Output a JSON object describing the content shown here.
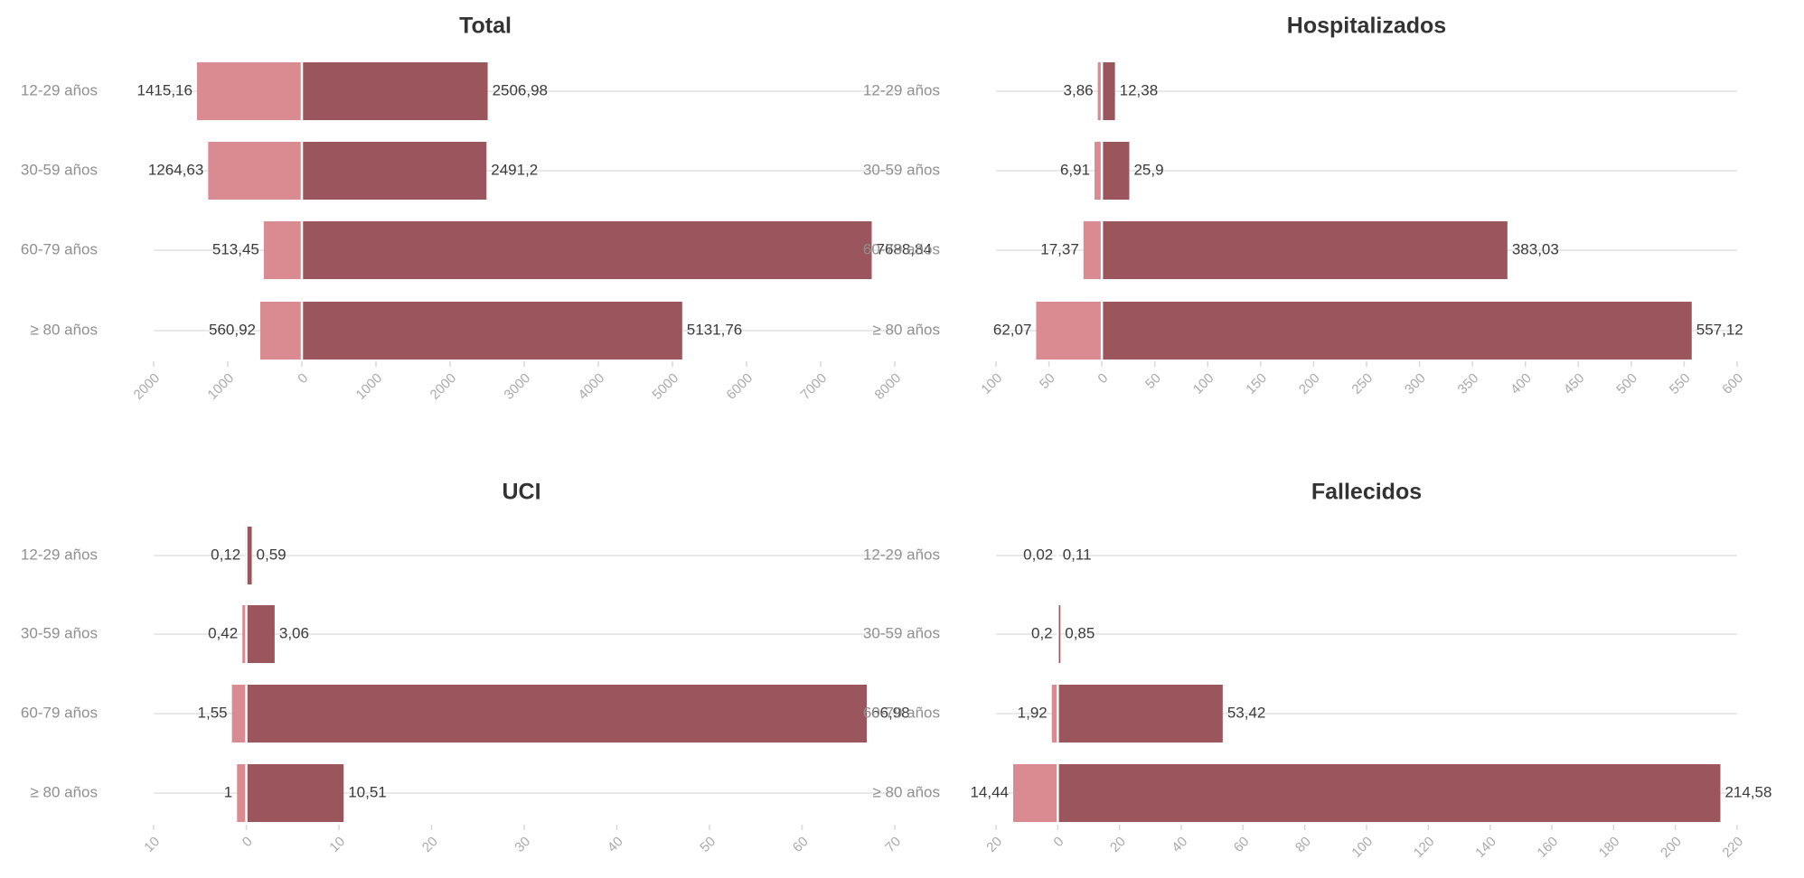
{
  "colors": {
    "left": "#d98b91",
    "right": "#9b565d",
    "zero_line": "#ffffff"
  },
  "chart_data": [
    {
      "type": "bar",
      "orientation": "horizontal-diverging",
      "title": "Total",
      "categories": [
        "12-29 años",
        "30-59 años",
        "60-79 años",
        "≥ 80 años"
      ],
      "series": [
        {
          "values": [
            1415.16,
            1264.63,
            513.45,
            560.92
          ],
          "labels": [
            "1415,16",
            "1264,63",
            "513,45",
            "560,92"
          ]
        },
        {
          "values": [
            2506.98,
            2491.2,
            7688.84,
            5131.76
          ],
          "labels": [
            "2506,98",
            "2491,2",
            "7688,84",
            "5131,76"
          ]
        }
      ],
      "xlim": [
        -2000,
        8000
      ],
      "ticks": [
        -2000,
        -1000,
        0,
        1000,
        2000,
        3000,
        4000,
        5000,
        6000,
        7000,
        8000
      ],
      "tick_labels": [
        "2000",
        "1000",
        "0",
        "1000",
        "2000",
        "3000",
        "4000",
        "5000",
        "6000",
        "7000",
        "8000"
      ],
      "grid": true
    },
    {
      "type": "bar",
      "orientation": "horizontal-diverging",
      "title": "Hospitalizados",
      "categories": [
        "12-29 años",
        "30-59 años",
        "60-79 años",
        "≥ 80 años"
      ],
      "series": [
        {
          "values": [
            3.86,
            6.91,
            17.37,
            62.07
          ],
          "labels": [
            "3,86",
            "6,91",
            "17,37",
            "62,07"
          ]
        },
        {
          "values": [
            12.38,
            25.9,
            383.03,
            557.12
          ],
          "labels": [
            "12,38",
            "25,9",
            "383,03",
            "557,12"
          ]
        }
      ],
      "xlim": [
        -100,
        600
      ],
      "ticks": [
        -100,
        -50,
        0,
        50,
        100,
        150,
        200,
        250,
        300,
        350,
        400,
        450,
        500,
        550,
        600
      ],
      "tick_labels": [
        "100",
        "50",
        "0",
        "50",
        "100",
        "150",
        "200",
        "250",
        "300",
        "350",
        "400",
        "450",
        "500",
        "550",
        "600"
      ],
      "grid": true
    },
    {
      "type": "bar",
      "orientation": "horizontal-diverging",
      "title": "UCI",
      "categories": [
        "12-29 años",
        "30-59 años",
        "60-79 años",
        "≥ 80 años"
      ],
      "series": [
        {
          "values": [
            0.12,
            0.42,
            1.55,
            1
          ],
          "labels": [
            "0,12",
            "0,42",
            "1,55",
            "1"
          ]
        },
        {
          "values": [
            0.59,
            3.06,
            66.98,
            10.51
          ],
          "labels": [
            "0,59",
            "3,06",
            "66,98",
            "10,51"
          ]
        }
      ],
      "xlim": [
        -10,
        70
      ],
      "ticks": [
        -10,
        0,
        10,
        20,
        30,
        40,
        50,
        60,
        70
      ],
      "tick_labels": [
        "10",
        "0",
        "10",
        "20",
        "30",
        "40",
        "50",
        "60",
        "70"
      ],
      "grid": true
    },
    {
      "type": "bar",
      "orientation": "horizontal-diverging",
      "title": "Fallecidos",
      "categories": [
        "12-29 años",
        "30-59 años",
        "60-79 años",
        "≥ 80 años"
      ],
      "series": [
        {
          "values": [
            0.02,
            0.2,
            1.92,
            14.44
          ],
          "labels": [
            "0,02",
            "0,2",
            "1,92",
            "14,44"
          ]
        },
        {
          "values": [
            0.11,
            0.85,
            53.42,
            214.58
          ],
          "labels": [
            "0,11",
            "0,85",
            "53,42",
            "214,58"
          ]
        }
      ],
      "xlim": [
        -20,
        220
      ],
      "ticks": [
        -20,
        0,
        20,
        40,
        60,
        80,
        100,
        120,
        140,
        160,
        180,
        200,
        220
      ],
      "tick_labels": [
        "20",
        "0",
        "20",
        "40",
        "60",
        "80",
        "100",
        "120",
        "140",
        "160",
        "180",
        "200",
        "220"
      ],
      "grid": true
    }
  ]
}
